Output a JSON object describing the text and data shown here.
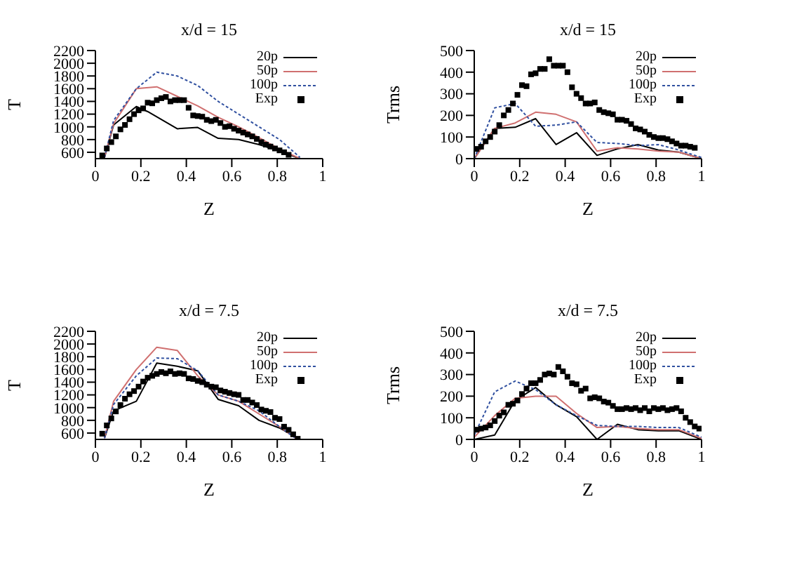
{
  "chart_data": [
    {
      "type": "line",
      "title": "x/d = 15",
      "xlabel": "Z",
      "ylabel": "T",
      "xlim": [
        0,
        1
      ],
      "xticks": [
        0,
        0.2,
        0.4,
        0.6,
        0.8,
        1
      ],
      "ylim": [
        500,
        2200
      ],
      "yticks": [
        600,
        800,
        1000,
        1200,
        1400,
        1600,
        1800,
        2000,
        2200
      ],
      "legend": "top right",
      "series": [
        {
          "name": "20p",
          "color": "#000000",
          "type": "line",
          "line_style": "solid",
          "marker": "none",
          "x": [
            0.04,
            0.08,
            0.18,
            0.23,
            0.36,
            0.45,
            0.54,
            0.63,
            0.72,
            0.81,
            0.9
          ],
          "values": [
            520,
            1030,
            1320,
            1240,
            970,
            990,
            820,
            800,
            720,
            620,
            500
          ]
        },
        {
          "name": "50p",
          "color": "#d07070",
          "type": "line",
          "line_style": "solid",
          "marker": "none",
          "x": [
            0.04,
            0.08,
            0.18,
            0.27,
            0.36,
            0.45,
            0.54,
            0.63,
            0.72,
            0.81,
            0.9
          ],
          "values": [
            520,
            1050,
            1600,
            1630,
            1480,
            1330,
            1150,
            1000,
            830,
            650,
            500
          ]
        },
        {
          "name": "100p",
          "color": "#3050a0",
          "type": "line",
          "line_style": "dotted",
          "marker": "none",
          "x": [
            0.04,
            0.08,
            0.18,
            0.27,
            0.36,
            0.45,
            0.54,
            0.63,
            0.72,
            0.81,
            0.9
          ],
          "values": [
            520,
            1100,
            1600,
            1860,
            1800,
            1650,
            1400,
            1200,
            1000,
            800,
            520
          ]
        },
        {
          "name": "Exp",
          "color": "#000000",
          "type": "scatter",
          "marker": "square",
          "x": [
            0.03,
            0.05,
            0.07,
            0.09,
            0.11,
            0.13,
            0.15,
            0.17,
            0.19,
            0.21,
            0.23,
            0.25,
            0.27,
            0.29,
            0.31,
            0.33,
            0.35,
            0.37,
            0.39,
            0.41,
            0.43,
            0.45,
            0.47,
            0.49,
            0.51,
            0.53,
            0.55,
            0.57,
            0.59,
            0.61,
            0.63,
            0.65,
            0.67,
            0.69,
            0.71,
            0.73,
            0.75,
            0.77,
            0.79,
            0.81,
            0.83,
            0.85
          ],
          "values": [
            550,
            660,
            760,
            850,
            960,
            1030,
            1120,
            1200,
            1260,
            1290,
            1380,
            1370,
            1420,
            1450,
            1470,
            1400,
            1420,
            1420,
            1420,
            1300,
            1180,
            1170,
            1160,
            1110,
            1090,
            1110,
            1060,
            1000,
            1010,
            970,
            940,
            910,
            880,
            850,
            810,
            760,
            720,
            690,
            660,
            630,
            600,
            560
          ]
        }
      ]
    },
    {
      "type": "line",
      "title": "x/d = 15",
      "xlabel": "Z",
      "ylabel": "Trms",
      "xlim": [
        0,
        1
      ],
      "xticks": [
        0,
        0.2,
        0.4,
        0.6,
        0.8,
        1
      ],
      "ylim": [
        0,
        500
      ],
      "yticks": [
        0,
        100,
        200,
        300,
        400,
        500
      ],
      "legend": "top right",
      "series": [
        {
          "name": "20p",
          "color": "#000000",
          "type": "line",
          "line_style": "solid",
          "marker": "none",
          "x": [
            0,
            0.09,
            0.18,
            0.27,
            0.36,
            0.45,
            0.54,
            0.63,
            0.72,
            0.81,
            0.9,
            1
          ],
          "values": [
            0,
            140,
            145,
            185,
            65,
            120,
            15,
            45,
            65,
            40,
            30,
            0
          ]
        },
        {
          "name": "50p",
          "color": "#d07070",
          "type": "line",
          "line_style": "solid",
          "marker": "none",
          "x": [
            0,
            0.09,
            0.18,
            0.27,
            0.36,
            0.45,
            0.54,
            0.63,
            0.72,
            0.81,
            0.9,
            1
          ],
          "values": [
            0,
            140,
            165,
            215,
            205,
            170,
            35,
            50,
            45,
            35,
            30,
            0
          ]
        },
        {
          "name": "100p",
          "color": "#3050a0",
          "type": "line",
          "line_style": "dotted",
          "marker": "none",
          "x": [
            0,
            0.09,
            0.18,
            0.27,
            0.36,
            0.45,
            0.54,
            0.63,
            0.72,
            0.81,
            0.9,
            1
          ],
          "values": [
            0,
            235,
            255,
            150,
            155,
            170,
            75,
            70,
            60,
            65,
            40,
            5
          ]
        },
        {
          "name": "Exp",
          "color": "#000000",
          "type": "scatter",
          "marker": "square",
          "x": [
            0.01,
            0.03,
            0.05,
            0.07,
            0.09,
            0.11,
            0.13,
            0.15,
            0.17,
            0.19,
            0.21,
            0.23,
            0.25,
            0.27,
            0.29,
            0.31,
            0.33,
            0.35,
            0.37,
            0.39,
            0.41,
            0.43,
            0.45,
            0.47,
            0.49,
            0.51,
            0.53,
            0.55,
            0.57,
            0.59,
            0.61,
            0.63,
            0.65,
            0.67,
            0.69,
            0.71,
            0.73,
            0.75,
            0.77,
            0.79,
            0.81,
            0.83,
            0.85,
            0.87,
            0.89,
            0.91,
            0.93,
            0.95,
            0.97
          ],
          "values": [
            45,
            55,
            80,
            100,
            125,
            155,
            200,
            225,
            255,
            295,
            340,
            335,
            390,
            395,
            415,
            415,
            460,
            430,
            430,
            430,
            400,
            330,
            300,
            280,
            255,
            255,
            260,
            225,
            215,
            210,
            205,
            180,
            180,
            175,
            160,
            140,
            135,
            125,
            110,
            100,
            95,
            95,
            90,
            80,
            70,
            60,
            60,
            55,
            50
          ]
        }
      ]
    },
    {
      "type": "line",
      "title": "x/d = 7.5",
      "xlabel": "Z",
      "ylabel": "T",
      "xlim": [
        0,
        1
      ],
      "xticks": [
        0,
        0.2,
        0.4,
        0.6,
        0.8,
        1
      ],
      "ylim": [
        500,
        2200
      ],
      "yticks": [
        600,
        800,
        1000,
        1200,
        1400,
        1600,
        1800,
        2000,
        2200
      ],
      "legend": "top right",
      "series": [
        {
          "name": "20p",
          "color": "#000000",
          "type": "line",
          "line_style": "solid",
          "marker": "none",
          "x": [
            0.04,
            0.08,
            0.18,
            0.27,
            0.36,
            0.45,
            0.54,
            0.63,
            0.72,
            0.81,
            0.9
          ],
          "values": [
            520,
            950,
            1100,
            1700,
            1650,
            1580,
            1130,
            1030,
            800,
            680,
            500
          ]
        },
        {
          "name": "50p",
          "color": "#d07070",
          "type": "line",
          "line_style": "solid",
          "marker": "none",
          "x": [
            0.04,
            0.08,
            0.18,
            0.27,
            0.36,
            0.45,
            0.54,
            0.63,
            0.72,
            0.81,
            0.88
          ],
          "values": [
            520,
            1100,
            1600,
            1950,
            1900,
            1500,
            1200,
            1100,
            900,
            700,
            520
          ]
        },
        {
          "name": "100p",
          "color": "#3050a0",
          "type": "line",
          "line_style": "dotted",
          "marker": "none",
          "x": [
            0.04,
            0.08,
            0.18,
            0.27,
            0.36,
            0.45,
            0.54,
            0.63,
            0.72,
            0.81,
            0.88
          ],
          "values": [
            520,
            1050,
            1500,
            1780,
            1770,
            1580,
            1200,
            1100,
            950,
            700,
            520
          ]
        },
        {
          "name": "Exp",
          "color": "#000000",
          "type": "scatter",
          "marker": "square",
          "x": [
            0.03,
            0.05,
            0.07,
            0.09,
            0.11,
            0.13,
            0.15,
            0.17,
            0.19,
            0.21,
            0.23,
            0.25,
            0.27,
            0.29,
            0.31,
            0.33,
            0.35,
            0.37,
            0.39,
            0.41,
            0.43,
            0.45,
            0.47,
            0.49,
            0.51,
            0.53,
            0.55,
            0.57,
            0.59,
            0.61,
            0.63,
            0.65,
            0.67,
            0.69,
            0.71,
            0.73,
            0.75,
            0.77,
            0.79,
            0.81,
            0.83,
            0.85,
            0.87,
            0.89
          ],
          "values": [
            590,
            720,
            830,
            940,
            1040,
            1140,
            1210,
            1260,
            1330,
            1410,
            1470,
            1500,
            1530,
            1560,
            1540,
            1570,
            1530,
            1540,
            1530,
            1460,
            1450,
            1420,
            1400,
            1360,
            1330,
            1320,
            1270,
            1250,
            1230,
            1210,
            1200,
            1120,
            1120,
            1080,
            1040,
            970,
            950,
            930,
            840,
            820,
            700,
            650,
            580,
            510
          ]
        }
      ]
    },
    {
      "type": "line",
      "title": "x/d = 7.5",
      "xlabel": "Z",
      "ylabel": "Trms",
      "xlim": [
        0,
        1
      ],
      "xticks": [
        0,
        0.2,
        0.4,
        0.6,
        0.8,
        1
      ],
      "ylim": [
        0,
        500
      ],
      "yticks": [
        0,
        100,
        200,
        300,
        400,
        500
      ],
      "legend": "top right",
      "series": [
        {
          "name": "20p",
          "color": "#000000",
          "type": "line",
          "line_style": "solid",
          "marker": "none",
          "x": [
            0,
            0.09,
            0.18,
            0.27,
            0.36,
            0.45,
            0.54,
            0.63,
            0.72,
            0.81,
            0.9,
            1
          ],
          "values": [
            0,
            20,
            180,
            240,
            160,
            105,
            0,
            70,
            45,
            40,
            40,
            0
          ]
        },
        {
          "name": "50p",
          "color": "#d07070",
          "type": "line",
          "line_style": "solid",
          "marker": "none",
          "x": [
            0,
            0.09,
            0.18,
            0.27,
            0.36,
            0.45,
            0.54,
            0.63,
            0.72,
            0.81,
            0.9,
            1
          ],
          "values": [
            10,
            110,
            190,
            200,
            200,
            120,
            55,
            60,
            50,
            45,
            45,
            5
          ]
        },
        {
          "name": "100p",
          "color": "#3050a0",
          "type": "line",
          "line_style": "dotted",
          "marker": "none",
          "x": [
            0,
            0.09,
            0.18,
            0.27,
            0.36,
            0.45,
            0.54,
            0.63,
            0.72,
            0.81,
            0.9,
            1
          ],
          "values": [
            20,
            220,
            270,
            230,
            160,
            110,
            65,
            60,
            60,
            55,
            55,
            10
          ]
        },
        {
          "name": "Exp",
          "color": "#000000",
          "type": "scatter",
          "marker": "square",
          "x": [
            0.01,
            0.03,
            0.05,
            0.07,
            0.09,
            0.11,
            0.13,
            0.15,
            0.17,
            0.19,
            0.21,
            0.23,
            0.25,
            0.27,
            0.29,
            0.31,
            0.33,
            0.35,
            0.37,
            0.39,
            0.41,
            0.43,
            0.45,
            0.47,
            0.49,
            0.51,
            0.53,
            0.55,
            0.57,
            0.59,
            0.61,
            0.63,
            0.65,
            0.67,
            0.69,
            0.71,
            0.73,
            0.75,
            0.77,
            0.79,
            0.81,
            0.83,
            0.85,
            0.87,
            0.89,
            0.91,
            0.93,
            0.95,
            0.97,
            0.99
          ],
          "values": [
            45,
            50,
            55,
            65,
            85,
            110,
            125,
            160,
            165,
            180,
            210,
            235,
            260,
            260,
            275,
            300,
            305,
            300,
            335,
            315,
            290,
            260,
            255,
            225,
            235,
            190,
            195,
            190,
            175,
            170,
            155,
            140,
            140,
            145,
            140,
            145,
            135,
            145,
            130,
            145,
            140,
            145,
            135,
            140,
            145,
            130,
            100,
            80,
            60,
            50
          ]
        }
      ]
    }
  ]
}
